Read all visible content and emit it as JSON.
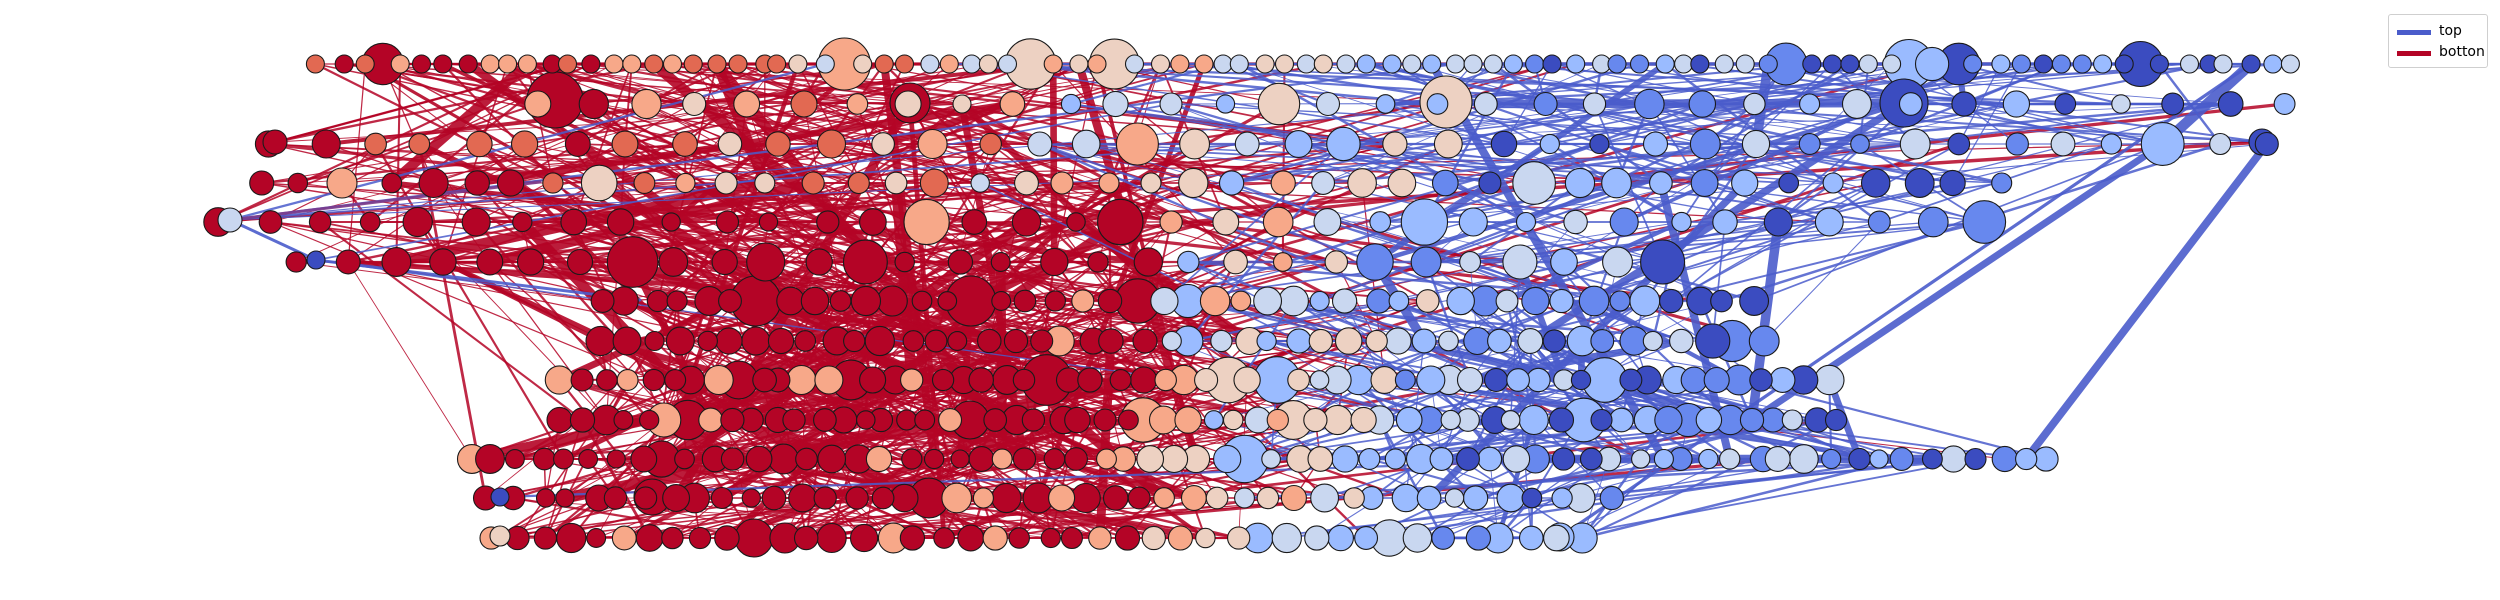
{
  "legend": {
    "items": [
      {
        "label": "top",
        "color": "#4a5ccb"
      },
      {
        "label": "botton",
        "color": "#b40426"
      }
    ]
  },
  "colors": {
    "top": "#4a5ccb",
    "bottom": "#b40426",
    "mixed": "#7b3a8a",
    "node_palette": [
      "#3b4cc0",
      "#6788ee",
      "#9abbff",
      "#c9d7f0",
      "#edd1c2",
      "#f7a889",
      "#e26952",
      "#b40426"
    ],
    "node_outline": "#1a1a1a"
  }
}
